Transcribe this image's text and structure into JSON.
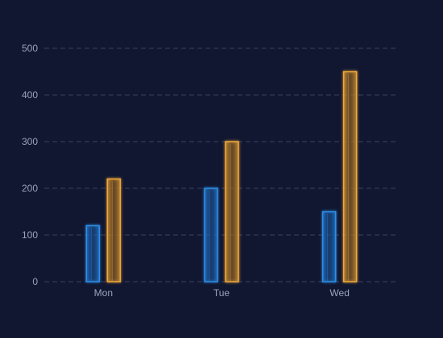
{
  "chart_data": {
    "type": "bar",
    "title": "",
    "xlabel": "",
    "ylabel": "",
    "categories": [
      "Mon",
      "Tue",
      "Wed"
    ],
    "yticks": [
      "0",
      "100",
      "200",
      "300",
      "400",
      "500"
    ],
    "ylim": [
      0,
      500
    ],
    "grid": true,
    "legend": "none",
    "series": [
      {
        "values": [
          120,
          200,
          150
        ],
        "color": "#2d8fe6"
      },
      {
        "values": [
          220,
          300,
          450
        ],
        "color": "#f0a83a"
      }
    ]
  }
}
